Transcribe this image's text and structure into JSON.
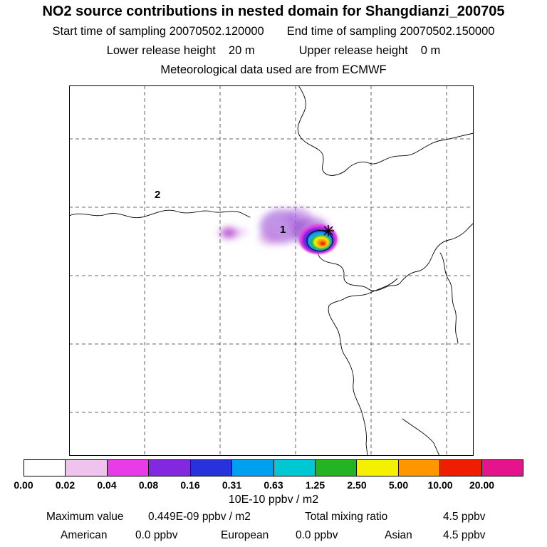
{
  "header": {
    "title": "NO2 source contributions in nested domain for Shangdianzi_200705",
    "start_time": "Start time of sampling 20070502.120000",
    "end_time": "End time of sampling 20070502.150000",
    "lower_release_label": "Lower release height",
    "lower_release_value": "20 m",
    "upper_release_label": "Upper release height",
    "upper_release_value": "0 m",
    "met_data": "Meteorological data used are from ECMWF"
  },
  "map": {
    "markers": [
      {
        "label": "1"
      },
      {
        "label": "2"
      }
    ],
    "receptor_marker": "cross"
  },
  "colorbar": {
    "ticks": [
      "0.00",
      "0.02",
      "0.04",
      "0.08",
      "0.16",
      "0.31",
      "0.63",
      "1.25",
      "2.50",
      "5.00",
      "10.00",
      "20.00"
    ],
    "segment_colors": [
      "#ffffff",
      "#f0c2ee",
      "#e83ce8",
      "#8428e0",
      "#2832dc",
      "#00a0f0",
      "#00c8d2",
      "#22b422",
      "#f5f000",
      "#ff9600",
      "#f01e00",
      "#e6148c"
    ],
    "overflow_color": "#501464",
    "units": "10E-10 ppbv / m2"
  },
  "footer": {
    "max_label": "Maximum value",
    "max_value": "0.449E-09 ppbv / m2",
    "total_label": "Total mixing ratio",
    "total_value": "4.5 ppbv",
    "regions": [
      {
        "name": "American",
        "value": "0.0 ppbv"
      },
      {
        "name": "European",
        "value": "0.0 ppbv"
      },
      {
        "name": "Asian",
        "value": "4.5 ppbv"
      }
    ]
  },
  "chart_data": {
    "type": "heatmap",
    "title": "NO2 source contributions in nested domain for Shangdianzi_200705",
    "species": "NO2",
    "station": "Shangdianzi",
    "period": "200705",
    "sampling_start": "20070502.120000",
    "sampling_end": "20070502.150000",
    "lower_release_height_m": 20,
    "upper_release_height_m": 0,
    "meteorology": "ECMWF",
    "units": "10E-10 ppbv / m2",
    "colorbar_boundaries": [
      0.0,
      0.02,
      0.04,
      0.08,
      0.16,
      0.31,
      0.63,
      1.25,
      2.5,
      5.0,
      10.0,
      20.0
    ],
    "colorbar_colors": [
      "#ffffff",
      "#f0c2ee",
      "#e83ce8",
      "#8428e0",
      "#2832dc",
      "#00a0f0",
      "#00c8d2",
      "#22b422",
      "#f5f000",
      "#ff9600",
      "#f01e00",
      "#e6148c",
      "#501464"
    ],
    "maximum_value": "0.449E-09 ppbv / m2",
    "total_mixing_ratio_ppbv": 4.5,
    "region_contributions_ppbv": {
      "American": 0.0,
      "European": 0.0,
      "Asian": 4.5
    },
    "map_annotations": [
      {
        "label": "1",
        "role": "source-point",
        "note": "near plume maximum"
      },
      {
        "label": "2",
        "role": "source-point",
        "note": "west of domain center"
      },
      {
        "label": "receptor",
        "role": "cross-marker",
        "note": "at plume core"
      }
    ],
    "legend_position": "bottom",
    "grid": "dashed"
  }
}
